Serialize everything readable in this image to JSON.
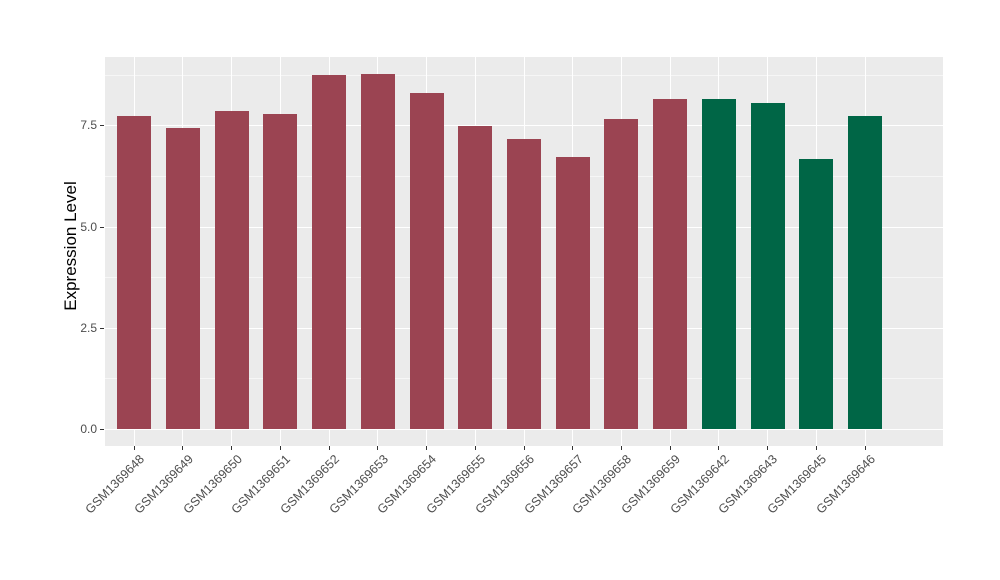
{
  "chart_data": {
    "type": "bar",
    "title": "",
    "xlabel": "",
    "ylabel": "Expression Level",
    "categories": [
      "GSM1369648",
      "GSM1369649",
      "GSM1369650",
      "GSM1369651",
      "GSM1369652",
      "GSM1369653",
      "GSM1369654",
      "GSM1369655",
      "GSM1369656",
      "GSM1369657",
      "GSM1369658",
      "GSM1369659",
      "GSM1369642",
      "GSM1369643",
      "GSM1369645",
      "GSM1369646"
    ],
    "values": [
      7.73,
      7.44,
      7.85,
      7.77,
      8.74,
      8.76,
      8.3,
      7.48,
      7.16,
      6.72,
      7.65,
      8.15,
      8.15,
      8.04,
      6.66,
      7.73
    ],
    "groups": [
      "group1",
      "group1",
      "group1",
      "group1",
      "group1",
      "group1",
      "group1",
      "group1",
      "group1",
      "group1",
      "group1",
      "group1",
      "group2",
      "group2",
      "group2",
      "group2"
    ],
    "palette": {
      "group1": "#9B4452",
      "group2": "#006646"
    },
    "ytick_labels": [
      "0.0",
      "2.5",
      "5.0",
      "7.5"
    ],
    "ytick_values": [
      0,
      2.5,
      5.0,
      7.5
    ],
    "minor_ytick_values": [
      1.25,
      3.75,
      6.25,
      8.75
    ],
    "ylim": [
      0,
      9.2
    ],
    "bar_width_fraction": 0.7,
    "legend": "none",
    "grid": "major-and-minor",
    "panel_background": "#EBEBEB",
    "gridline_major_color": "#FFFFFF",
    "gridline_minor_color": "#F5F5F5",
    "tick_color": "#333333",
    "tick_label_color": "#4D4D4D"
  }
}
